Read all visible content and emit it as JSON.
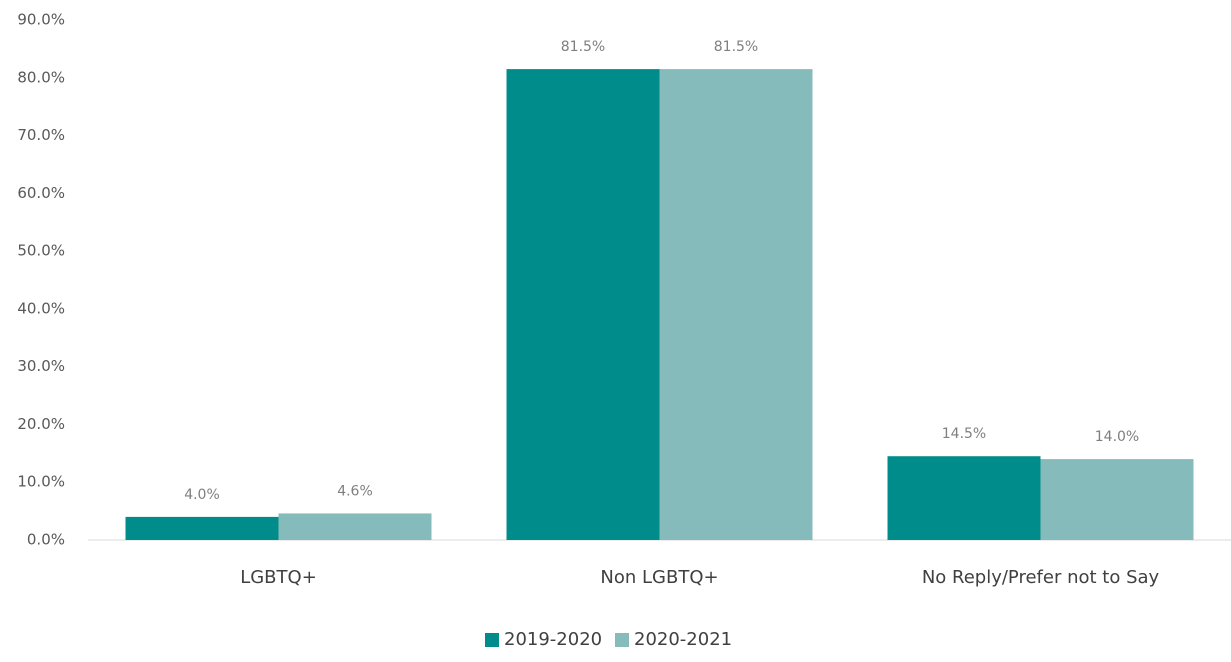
{
  "chart_data": {
    "type": "bar",
    "categories": [
      "LGBTQ+",
      "Non LGBTQ+",
      "No Reply/Prefer not to Say"
    ],
    "series": [
      {
        "name": "2019-2020",
        "color": "#008c8a",
        "values": [
          4.0,
          81.5,
          14.5
        ],
        "value_labels": [
          "4.0%",
          "81.5%",
          "14.5%"
        ]
      },
      {
        "name": "2020-2021",
        "color": "#86bbbb",
        "values": [
          4.6,
          81.5,
          14.0
        ],
        "value_labels": [
          "4.6%",
          "81.5%",
          "14.0%"
        ]
      }
    ],
    "ylim": [
      0,
      90
    ],
    "yticks": [
      {
        "value": 0,
        "label": "0.0%"
      },
      {
        "value": 10,
        "label": "10.0%"
      },
      {
        "value": 20,
        "label": "20.0%"
      },
      {
        "value": 30,
        "label": "30.0%"
      },
      {
        "value": 40,
        "label": "40.0%"
      },
      {
        "value": 50,
        "label": "50.0%"
      },
      {
        "value": 60,
        "label": "60.0%"
      },
      {
        "value": 70,
        "label": "70.0%"
      },
      {
        "value": 80,
        "label": "80.0%"
      },
      {
        "value": 90,
        "label": "90.0%"
      }
    ],
    "grid": false,
    "legend": "bottom"
  }
}
